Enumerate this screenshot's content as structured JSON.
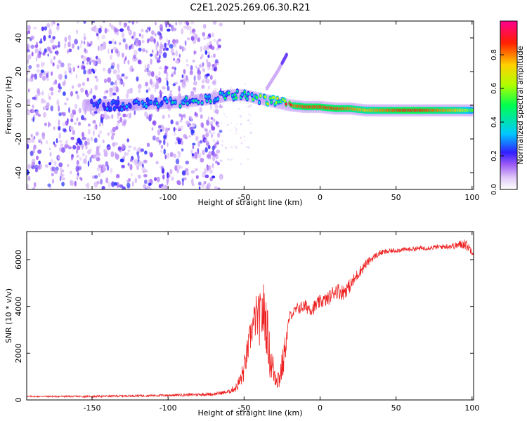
{
  "title": "C2E1.2025.269.06.30.R21",
  "chart_data": [
    {
      "type": "heatmap",
      "title": "C2E1.2025.269.06.30.R21",
      "xlabel": "Height of straight line (km)",
      "ylabel": "Frequency (Hz)",
      "xlim": [
        -193,
        101
      ],
      "ylim": [
        -50,
        50
      ],
      "xticks": [
        -150,
        -100,
        -50,
        0,
        50,
        100
      ],
      "yticks": [
        -40,
        -20,
        0,
        20,
        40
      ],
      "colorbar": {
        "label": "Normalized spectral amplitude",
        "range": [
          0,
          1
        ],
        "ticks": [
          "0.0",
          "0.2",
          "0.4",
          "0.6",
          "0.8"
        ],
        "colormap": [
          "#ffffff",
          "#d8b8f8",
          "#7a2cf0",
          "#2020ff",
          "#00c8ff",
          "#00ff60",
          "#c0ff00",
          "#ffd000",
          "#ff2000",
          "#ff0080"
        ]
      },
      "ridge": {
        "x": [
          -150,
          -130,
          -110,
          -90,
          -70,
          -60,
          -50,
          -40,
          -30,
          -25,
          -20,
          -10,
          0,
          10,
          20,
          30,
          40,
          50,
          60,
          70,
          80,
          90,
          100
        ],
        "freq": [
          0,
          0,
          1,
          2,
          4,
          6,
          6,
          4,
          2,
          1,
          0,
          -1,
          -1,
          -2,
          -2,
          -3,
          -3,
          -3,
          -3,
          -3,
          -3,
          -3,
          -3
        ],
        "amplitude": [
          0.25,
          0.25,
          0.3,
          0.35,
          0.35,
          0.4,
          0.45,
          0.5,
          0.6,
          0.7,
          0.8,
          0.85,
          0.85,
          0.85,
          0.8,
          0.75,
          0.8,
          0.85,
          0.9,
          0.85,
          0.8,
          0.75,
          0.55
        ]
      },
      "branch": {
        "x": [
          -35,
          -28,
          -22
        ],
        "freq": [
          10,
          20,
          30
        ]
      },
      "noise_region": {
        "x_from": -193,
        "x_to": -65,
        "amplitude": 0.2
      }
    },
    {
      "type": "line",
      "xlabel": "Height of straight line (km)",
      "ylabel": "SNR (10 * v/v)",
      "xlim": [
        -193,
        101
      ],
      "ylim": [
        0,
        7200
      ],
      "xticks": [
        -150,
        -100,
        -50,
        0,
        50,
        100
      ],
      "yticks": [
        0,
        2000,
        4000,
        6000
      ],
      "series": [
        {
          "name": "SNR",
          "color": "#ee2222",
          "x": [
            -193,
            -150,
            -100,
            -70,
            -60,
            -55,
            -52,
            -50,
            -45,
            -42,
            -40,
            -37,
            -35,
            -33,
            -30,
            -27,
            -24,
            -20,
            -18,
            -15,
            -10,
            -5,
            0,
            5,
            10,
            15,
            20,
            25,
            30,
            35,
            40,
            50,
            60,
            70,
            80,
            90,
            95,
            101
          ],
          "values": [
            150,
            150,
            200,
            250,
            350,
            550,
            900,
            1300,
            3000,
            3600,
            3400,
            3800,
            3100,
            1800,
            1100,
            900,
            1700,
            3600,
            3700,
            3900,
            4000,
            3900,
            4200,
            4300,
            4700,
            4600,
            4900,
            5400,
            5800,
            6100,
            6300,
            6400,
            6450,
            6500,
            6550,
            6600,
            6700,
            6300
          ],
          "noise": [
            30,
            40,
            50,
            70,
            90,
            200,
            400,
            500,
            700,
            900,
            1100,
            1300,
            1200,
            900,
            600,
            500,
            700,
            200,
            200,
            250,
            300,
            300,
            300,
            300,
            350,
            350,
            300,
            250,
            200,
            150,
            120,
            100,
            100,
            100,
            110,
            150,
            250,
            150
          ]
        }
      ]
    }
  ]
}
